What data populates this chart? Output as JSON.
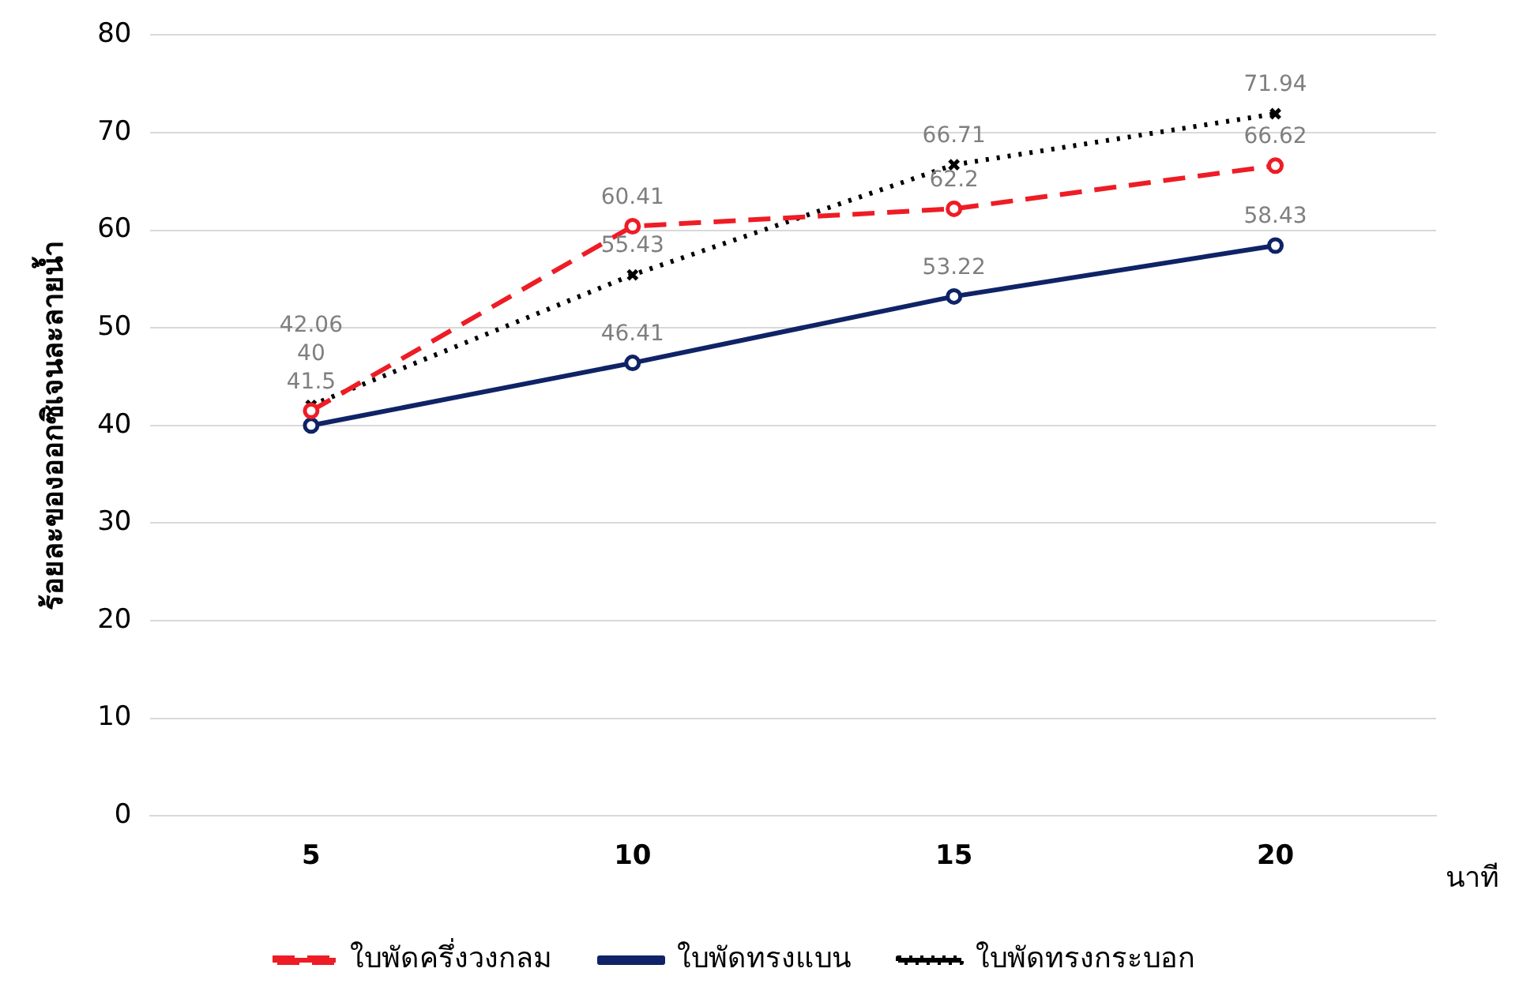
{
  "chart_data": {
    "type": "line",
    "categories": [
      "5",
      "10",
      "15",
      "20"
    ],
    "xlabel": "นาที",
    "ylabel": "ร้อยละของออกซิเจนละลายน้ำ",
    "ylim": [
      0,
      80
    ],
    "yticks": [
      0,
      10,
      20,
      30,
      40,
      50,
      60,
      70,
      80
    ],
    "grid": "y",
    "legend": "bottom",
    "data_labels": true,
    "series": [
      {
        "name": "ใบพัดครึ่งวงกลม",
        "color": "#ee1c25",
        "line_style": "dashed",
        "marker": "circle",
        "values": [
          41.5,
          60.41,
          62.2,
          66.62
        ]
      },
      {
        "name": "ใบพัดทรงแบน",
        "color": "#0f2366",
        "line_style": "solid",
        "marker": "circle",
        "values": [
          40,
          46.41,
          53.22,
          58.43
        ]
      },
      {
        "name": "ใบพัดทรงกระบอก",
        "color": "#000000",
        "line_style": "dotted",
        "marker": "cross",
        "values": [
          42.06,
          55.43,
          66.71,
          71.94
        ]
      }
    ]
  }
}
